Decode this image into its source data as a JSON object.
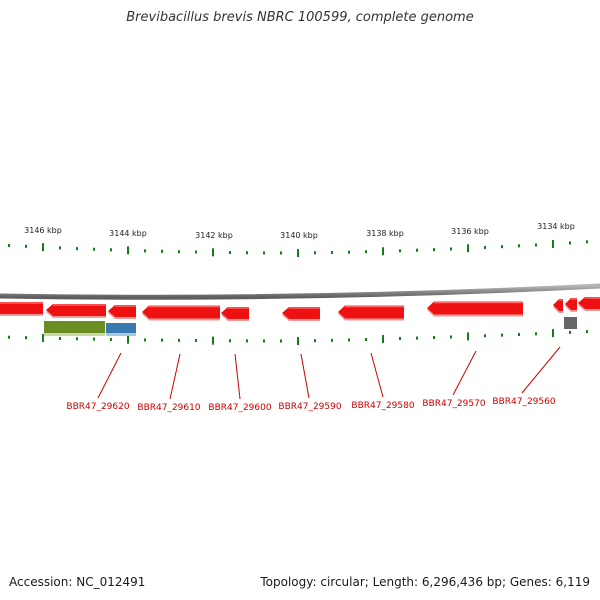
{
  "title": "Brevibacillus brevis NBRC 100599, complete genome",
  "footer": {
    "accession": "Accession: NC_012491",
    "summary": "Topology: circular; Length: 6,296,436 bp; Genes: 6,119"
  },
  "colors": {
    "backbone": "#8c8c8c",
    "tick": "#1a7a1a",
    "gene": "#ee1111",
    "gene_label": "#cc0000",
    "leader": "#cc0000",
    "feature_green": "#6b8e23",
    "feature_blue": "#3a78b0",
    "feature_gray": "#666666"
  },
  "axis_labels": [
    "3146 kbp",
    "3144 kbp",
    "3142 kbp",
    "3140 kbp",
    "3138 kbp",
    "3136 kbp",
    "3134 kbp"
  ],
  "gene_labels": [
    "BBR47_29620",
    "BBR47_29610",
    "BBR47_29600",
    "BBR47_29590",
    "BBR47_29580",
    "BBR47_29570",
    "BBR47_29560"
  ]
}
